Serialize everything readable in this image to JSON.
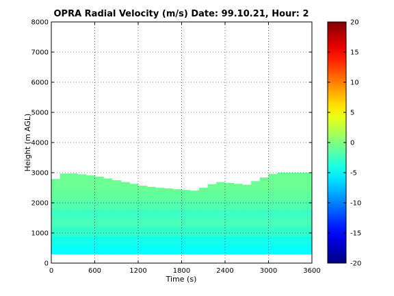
{
  "chart_data": {
    "type": "heatmap",
    "title": "OPRA Radial Velocity (m/s)  Date: 99.10.21, Hour: 2",
    "xlabel": "Time (s)",
    "ylabel": "Height (m AGL)",
    "xlim": [
      0,
      3600
    ],
    "ylim": [
      0,
      8000
    ],
    "xticks": [
      0,
      600,
      1200,
      1800,
      2400,
      3000,
      3600
    ],
    "yticks": [
      0,
      1000,
      2000,
      3000,
      4000,
      5000,
      6000,
      7000,
      8000
    ],
    "grid": true,
    "colorbar": {
      "colormap": "jet",
      "clim": [
        -20,
        20
      ],
      "ticks": [
        -20,
        -15,
        -10,
        -5,
        0,
        5,
        10,
        15,
        20
      ]
    },
    "data_extent": {
      "x": [
        0,
        3600
      ],
      "y": [
        300,
        3000
      ]
    },
    "profile": [
      {
        "height_top": 600,
        "velocity": -4.8
      },
      {
        "height_top": 900,
        "velocity": -4.2
      },
      {
        "height_top": 1200,
        "velocity": -3.0
      },
      {
        "height_top": 1500,
        "velocity": -2.2
      },
      {
        "height_top": 1800,
        "velocity": -2.6
      },
      {
        "height_top": 2100,
        "velocity": -1.8
      },
      {
        "height_top": 2400,
        "velocity": -1.2
      },
      {
        "height_top": 3000,
        "velocity": -0.8
      }
    ],
    "top_boundary": [
      {
        "x": 0,
        "height": 2700
      },
      {
        "x": 200,
        "height": 3000
      },
      {
        "x": 600,
        "height": 2900
      },
      {
        "x": 1000,
        "height": 2700
      },
      {
        "x": 1300,
        "height": 2550
      },
      {
        "x": 1500,
        "height": 2500
      },
      {
        "x": 2000,
        "height": 2400
      },
      {
        "x": 2300,
        "height": 2700
      },
      {
        "x": 2700,
        "height": 2600
      },
      {
        "x": 3100,
        "height": 3000
      },
      {
        "x": 3600,
        "height": 3000
      }
    ]
  }
}
